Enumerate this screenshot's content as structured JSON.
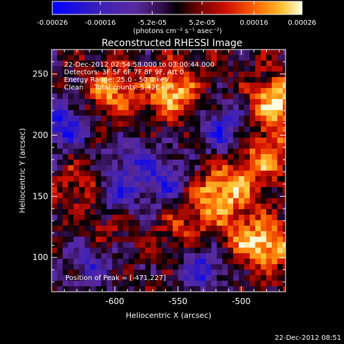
{
  "chart_data": {
    "type": "heatmap",
    "title": "Reconstructed RHESSI Image",
    "xlabel": "Heliocentric X (arcsec)",
    "ylabel": "Heliocentric Y (arcsec)",
    "xlim": [
      -650,
      -465
    ],
    "ylim": [
      72,
      270
    ],
    "x_ticks": [
      -600,
      -550,
      -500
    ],
    "y_ticks": [
      100,
      150,
      200,
      250
    ],
    "colorbar": {
      "ticks": [
        "-0.00026",
        "-0.00016",
        "-5.2e-05",
        "5.2e-05",
        "0.00016",
        "0.00026"
      ],
      "tick_values": [
        -0.00026,
        -0.00016,
        -5.2e-05,
        5.2e-05,
        0.00016,
        0.00026
      ],
      "range": [
        -0.00026,
        0.00026
      ],
      "units_label": "(photons cm⁻² s⁻¹ asec⁻²)"
    },
    "annotations": [
      "22-Dec-2012 02:54:58.000 to 03:00:44.000",
      "Detectors: 3F 5F 6F 7F 8F 9F, Att 0",
      "Energy Range: 25.0 - 50.0 keV",
      "Clean     Total counts: 5.42E+03"
    ],
    "peak_label": "Position of Peak = [-471,227]",
    "peak": [
      -471,
      227
    ],
    "timestamp": "22-Dec-2012 08:51",
    "hot_spots": [
      {
        "x": -471,
        "y": 227,
        "v": 0.00026
      },
      {
        "x": -555,
        "y": 236,
        "v": 0.00022
      },
      {
        "x": -603,
        "y": 235,
        "v": 0.00018
      },
      {
        "x": -525,
        "y": 148,
        "v": 0.00016
      },
      {
        "x": -480,
        "y": 185,
        "v": 0.00017
      },
      {
        "x": -478,
        "y": 110,
        "v": 0.0002
      },
      {
        "x": -505,
        "y": 160,
        "v": 0.00015
      },
      {
        "x": -500,
        "y": 118,
        "v": 0.00012
      },
      {
        "x": -625,
        "y": 160,
        "v": 0.0001
      },
      {
        "x": -610,
        "y": 125,
        "v": 8e-05
      },
      {
        "x": -545,
        "y": 120,
        "v": 9e-05
      }
    ],
    "cold_spots": [
      {
        "x": -640,
        "y": 208,
        "v": -0.0002
      },
      {
        "x": -515,
        "y": 205,
        "v": -0.00018
      },
      {
        "x": -560,
        "y": 162,
        "v": -0.00016
      },
      {
        "x": -600,
        "y": 150,
        "v": -0.00014
      },
      {
        "x": -620,
        "y": 95,
        "v": -0.00014
      },
      {
        "x": -530,
        "y": 92,
        "v": -0.00018
      },
      {
        "x": -590,
        "y": 180,
        "v": -0.00012
      }
    ]
  }
}
